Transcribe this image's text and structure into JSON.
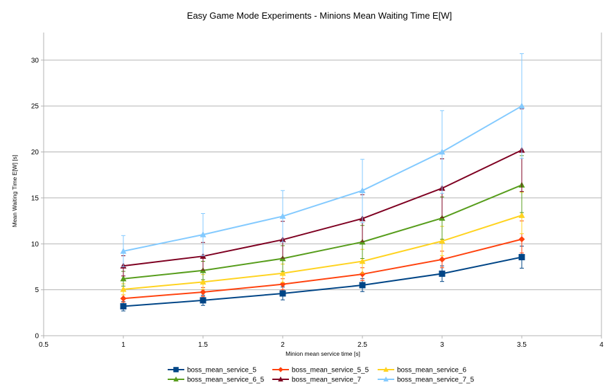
{
  "chart_data": {
    "type": "line",
    "title": "Easy Game Mode Experiments - Minions Mean Waiting Time E[W]",
    "xlabel": "Minion mean service time [s]",
    "ylabel": "Mean Waiting Time E[W] [s]",
    "xlim": [
      0.5,
      4
    ],
    "ylim": [
      0,
      33
    ],
    "x_ticks": [
      0.5,
      1,
      1.5,
      2,
      2.5,
      3,
      3.5,
      4
    ],
    "x_tick_labels": [
      "0.5",
      "1",
      "1.5",
      "2",
      "2.5",
      "3",
      "3.5",
      "4"
    ],
    "y_ticks": [
      0,
      5,
      10,
      15,
      20,
      25,
      30
    ],
    "y_tick_labels": [
      "0",
      "5",
      "10",
      "15",
      "20",
      "25",
      "30"
    ],
    "grid": "horizontal",
    "legend_position": "bottom",
    "x": [
      1,
      1.5,
      2,
      2.5,
      3,
      3.5
    ],
    "series": [
      {
        "name": "boss_mean_service_5",
        "color": "#004586",
        "marker": "square",
        "values": [
          3.2,
          3.85,
          4.6,
          5.5,
          6.75,
          8.55
        ],
        "err_low": [
          0.5,
          0.55,
          0.7,
          0.7,
          0.85,
          1.2
        ],
        "err_high": [
          0.5,
          0.55,
          0.7,
          0.7,
          0.85,
          1.2
        ]
      },
      {
        "name": "boss_mean_service_5_5",
        "color": "#ff420e",
        "marker": "diamond",
        "values": [
          4.05,
          4.75,
          5.6,
          6.7,
          8.3,
          10.5
        ],
        "err_low": [
          0.4,
          0.5,
          0.6,
          0.7,
          0.9,
          1.5
        ],
        "err_high": [
          0.4,
          0.5,
          0.6,
          0.7,
          0.9,
          2.0
        ]
      },
      {
        "name": "boss_mean_service_6",
        "color": "#ffd320",
        "marker": "triangle",
        "values": [
          5.05,
          5.85,
          6.8,
          8.1,
          10.3,
          13.1
        ],
        "err_low": [
          0.6,
          0.8,
          1.0,
          1.3,
          1.6,
          2.0
        ],
        "err_high": [
          0.6,
          0.8,
          1.0,
          1.3,
          1.6,
          2.5
        ]
      },
      {
        "name": "boss_mean_service_6_5",
        "color": "#579d1c",
        "marker": "triangle",
        "values": [
          6.2,
          7.1,
          8.4,
          10.2,
          12.8,
          16.4
        ],
        "err_low": [
          0.8,
          1.0,
          1.4,
          1.8,
          2.3,
          3.0
        ],
        "err_high": [
          0.8,
          1.0,
          1.4,
          1.8,
          2.3,
          3.2
        ]
      },
      {
        "name": "boss_mean_service_7",
        "color": "#7e0021",
        "marker": "triangle",
        "values": [
          7.6,
          8.65,
          10.45,
          12.75,
          16.05,
          20.2
        ],
        "err_low": [
          1.1,
          1.5,
          2.0,
          2.5,
          3.2,
          4.5
        ],
        "err_high": [
          1.1,
          1.5,
          2.0,
          2.6,
          3.2,
          4.5
        ]
      },
      {
        "name": "boss_mean_service_7_5",
        "color": "#83caff",
        "marker": "triangle",
        "values": [
          9.2,
          11.0,
          13.0,
          15.8,
          20.0,
          25.0
        ],
        "err_low": [
          1.7,
          2.3,
          2.8,
          3.5,
          4.5,
          5.7
        ],
        "err_high": [
          1.7,
          2.3,
          2.8,
          3.4,
          4.5,
          5.7
        ]
      }
    ]
  }
}
